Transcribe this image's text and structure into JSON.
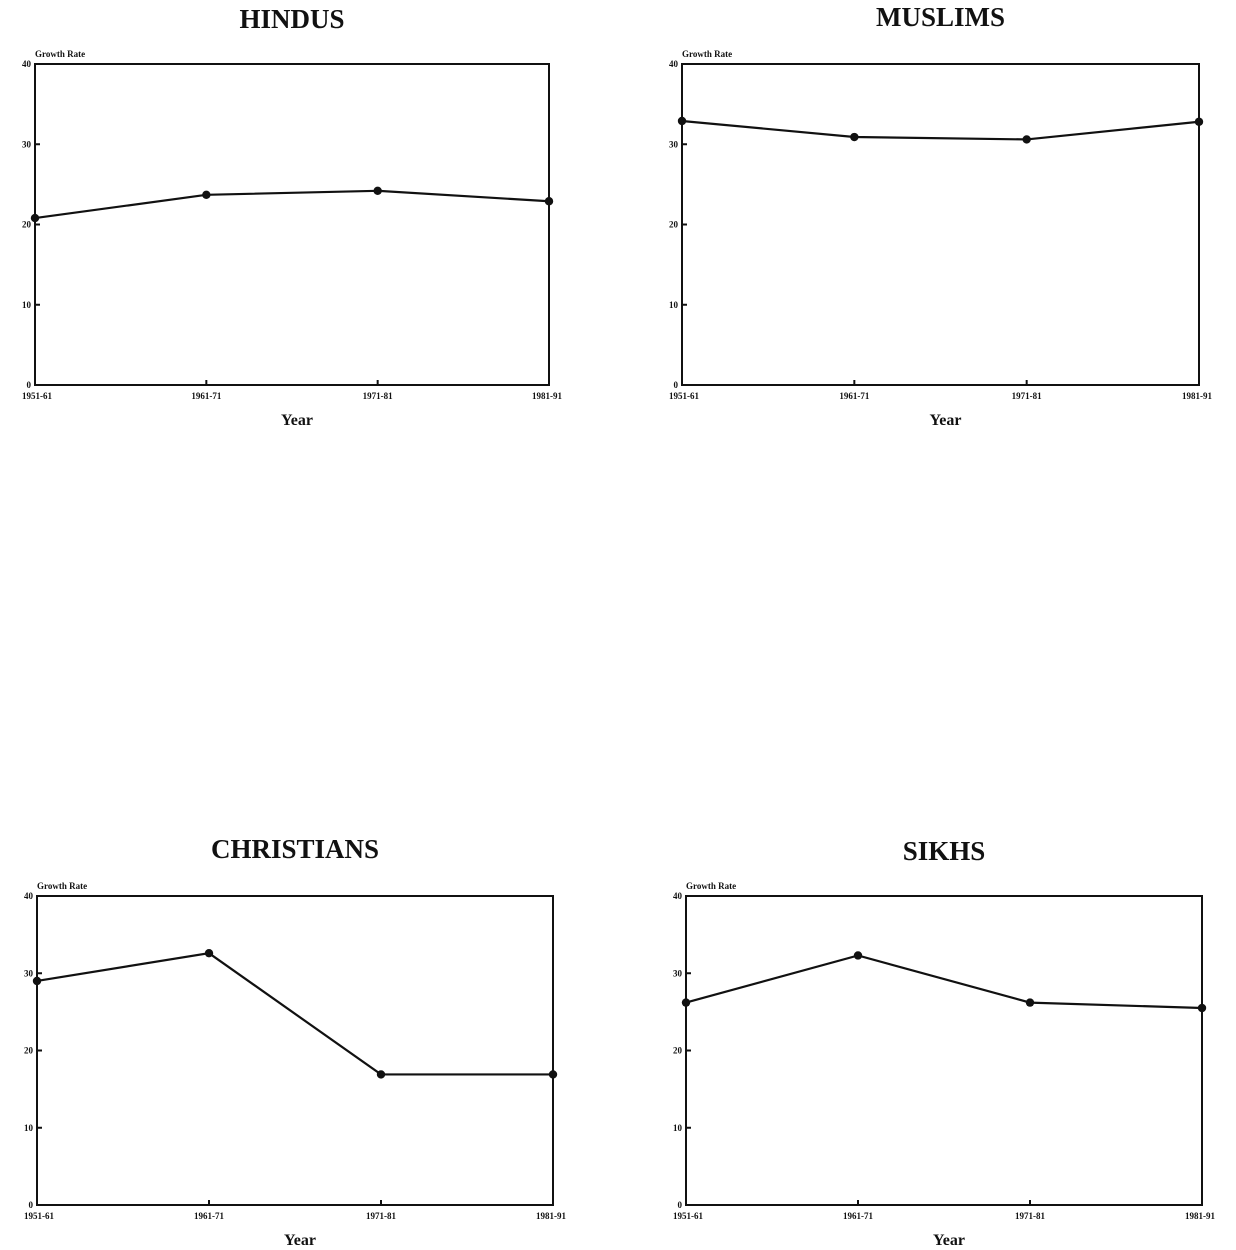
{
  "chart_data": [
    {
      "type": "line",
      "title": "HINDUS",
      "ylabel": "Growth Rate",
      "xlabel": "Year",
      "categories": [
        "1951-61",
        "1961-71",
        "1971-81",
        "1981-91"
      ],
      "values": [
        20.8,
        23.7,
        24.2,
        22.9
      ],
      "ylim": [
        0,
        40
      ],
      "yticks": [
        0,
        10,
        20,
        30,
        40
      ],
      "grid": false
    },
    {
      "type": "line",
      "title": "MUSLIMS",
      "ylabel": "Growth Rate",
      "xlabel": "Year",
      "categories": [
        "1951-61",
        "1961-71",
        "1971-81",
        "1981-91"
      ],
      "values": [
        32.9,
        30.9,
        30.6,
        32.8
      ],
      "ylim": [
        0,
        40
      ],
      "yticks": [
        0,
        10,
        20,
        30,
        40
      ],
      "grid": false
    },
    {
      "type": "line",
      "title": "CHRISTIANS",
      "ylabel": "Growth Rate",
      "xlabel": "Year",
      "categories": [
        "1951-61",
        "1961-71",
        "1971-81",
        "1981-91"
      ],
      "values": [
        29.0,
        32.6,
        16.9,
        16.9
      ],
      "ylim": [
        0,
        40
      ],
      "yticks": [
        0,
        10,
        20,
        30,
        40
      ],
      "grid": false
    },
    {
      "type": "line",
      "title": "SIKHS",
      "ylabel": "Growth Rate",
      "xlabel": "Year",
      "categories": [
        "1951-61",
        "1961-71",
        "1971-81",
        "1981-91"
      ],
      "values": [
        26.2,
        32.3,
        26.2,
        25.5
      ],
      "ylim": [
        0,
        40
      ],
      "yticks": [
        0,
        10,
        20,
        30,
        40
      ],
      "grid": false
    }
  ]
}
